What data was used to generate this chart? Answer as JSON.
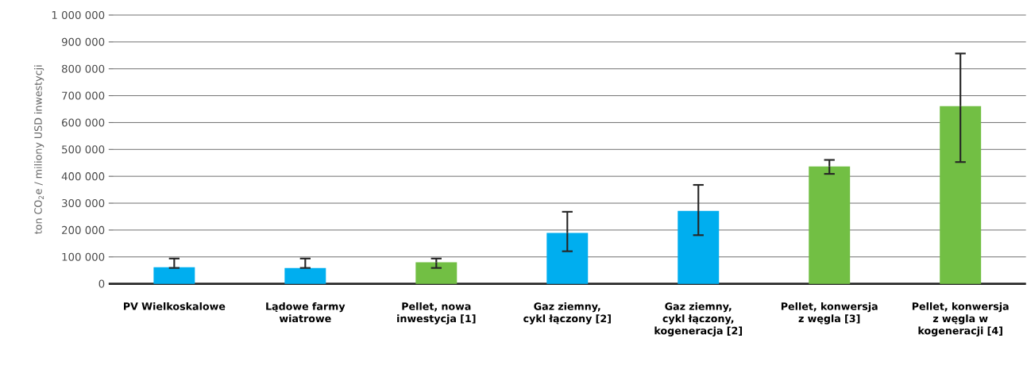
{
  "chart_data": {
    "type": "bar",
    "ylabel": "ton CO$_{2}$e / miliony USD inwestycji",
    "categories": [
      "PV Wielkoskalowe",
      "Lądowe farmy wiatrowe",
      "Pellet, nowa inwestycja [1]",
      "Gaz ziemny, cykl łączony [2]",
      "Gaz ziemny, cykl łączony, kogeneracja [2]",
      "Pellet, konwersja z węgla [3]",
      "Pellet, konwersja z węgla w kogeneracji [4]"
    ],
    "values": [
      62000,
      59000,
      80000,
      189000,
      271000,
      437000,
      661000
    ],
    "errors": [
      [
        59000,
        94000
      ],
      [
        59000,
        94000
      ],
      [
        59000,
        94000
      ],
      [
        121000,
        268000
      ],
      [
        181000,
        368000
      ],
      [
        409000,
        461000
      ],
      [
        453000,
        857000
      ]
    ],
    "colors": [
      "#00aeef",
      "#00aeef",
      "#72bf44",
      "#00aeef",
      "#00aeef",
      "#72bf44",
      "#72bf44"
    ],
    "ylim": [
      0,
      1000000
    ],
    "yticks": [
      {
        "value": 0,
        "label": "0"
      },
      {
        "value": 100000,
        "label": "100 000"
      },
      {
        "value": 200000,
        "label": "200 000"
      },
      {
        "value": 300000,
        "label": "300 000"
      },
      {
        "value": 400000,
        "label": "400 000"
      },
      {
        "value": 500000,
        "label": "500 000"
      },
      {
        "value": 600000,
        "label": "600 000"
      },
      {
        "value": 700000,
        "label": "700 000"
      },
      {
        "value": 800000,
        "label": "800 000"
      },
      {
        "value": 900000,
        "label": "900 000"
      },
      {
        "value": 1000000,
        "label": "1 000 000"
      }
    ],
    "grid": "y"
  }
}
